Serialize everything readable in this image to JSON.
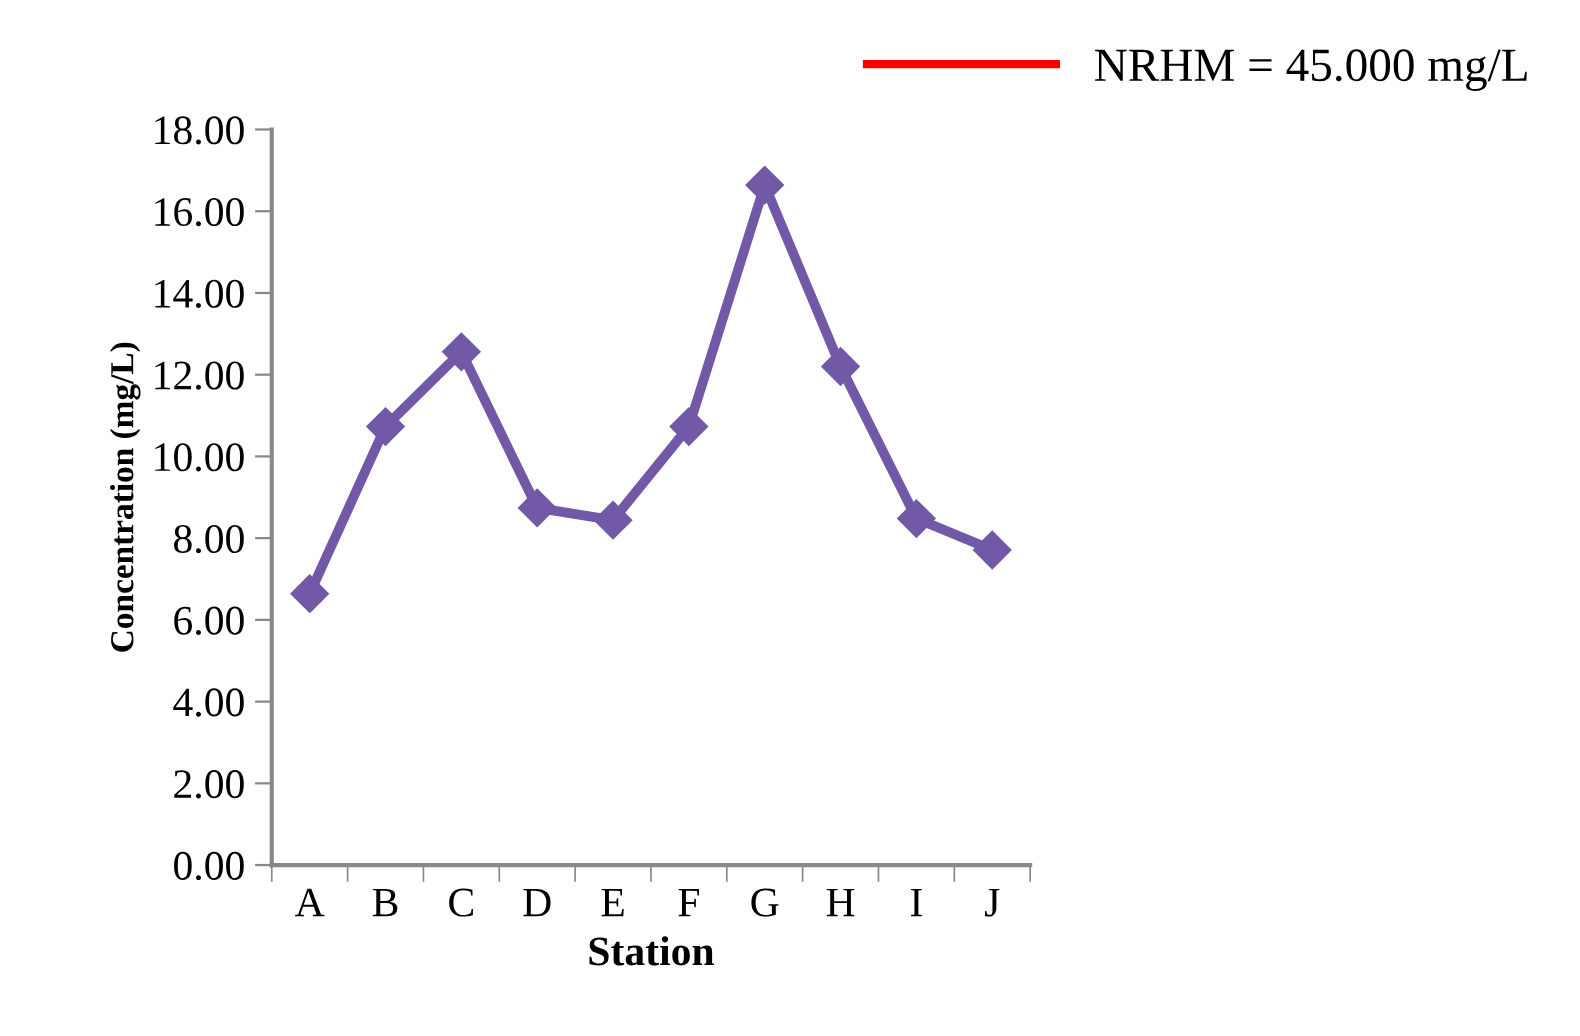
{
  "chart_data": {
    "type": "line",
    "xlabel": "Station",
    "ylabel": "Concentration (mg/L)",
    "categories": [
      "A",
      "B",
      "C",
      "D",
      "E",
      "F",
      "G",
      "H",
      "I",
      "J"
    ],
    "series": [
      {
        "color": "#7159a8",
        "values": [
          6.64,
          10.73,
          12.56,
          8.74,
          8.44,
          10.73,
          16.64,
          12.2,
          8.48,
          7.71
        ]
      },
      {
        "name": "NRHM = 45.000 mg/L",
        "color": "#ff0000",
        "values": [
          null,
          null,
          null,
          null,
          null,
          null,
          null,
          null,
          null,
          null
        ]
      }
    ],
    "ylim": [
      0,
      18
    ],
    "yticks": [
      {
        "value": 0,
        "label": "0.00"
      },
      {
        "value": 2,
        "label": "2.00"
      },
      {
        "value": 4,
        "label": "4.00"
      },
      {
        "value": 6,
        "label": "6.00"
      },
      {
        "value": 8,
        "label": "8.00"
      },
      {
        "value": 10,
        "label": "10.00"
      },
      {
        "value": 12,
        "label": "12.00"
      },
      {
        "value": 14,
        "label": "14.00"
      },
      {
        "value": 16,
        "label": "16.00"
      },
      {
        "value": 18,
        "label": "18.00"
      }
    ],
    "marker": "diamond",
    "line_style": "solid",
    "grid": false,
    "legend": "top"
  }
}
